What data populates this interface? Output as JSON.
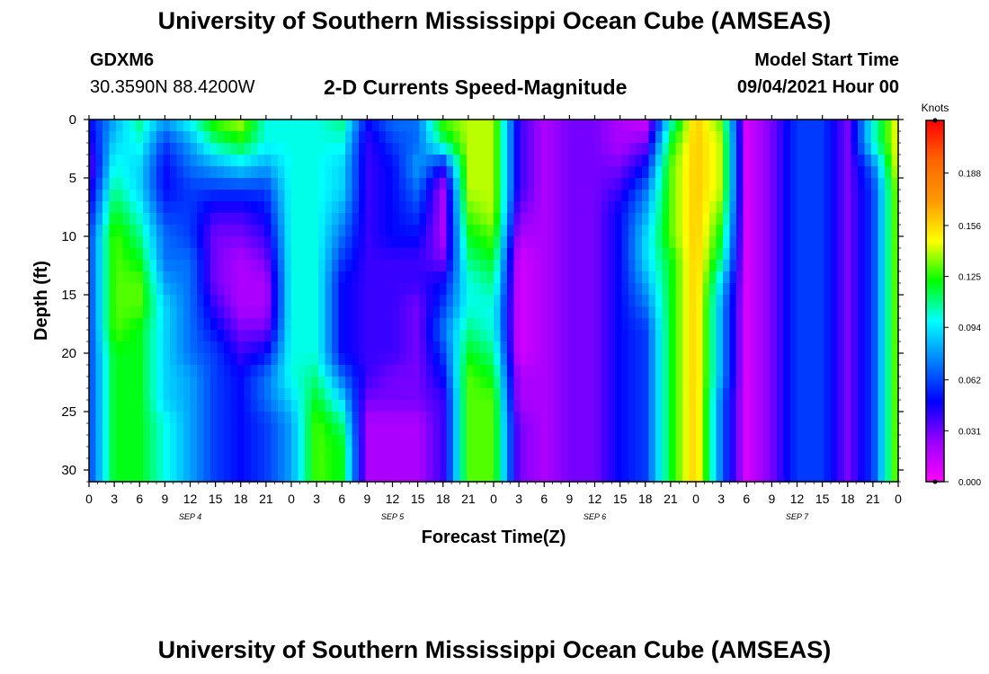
{
  "header": {
    "title": "University of Southern Mississippi Ocean Cube (AMSEAS)",
    "station": "GDXM6",
    "coords": "30.3590N  88.4200W",
    "subtitle": "2-D Currents Speed-Magnitude",
    "model_start_label": "Model Start Time",
    "model_start_value": "09/04/2021 Hour 00"
  },
  "footer": {
    "title": "University of Southern Mississippi Ocean Cube (AMSEAS)"
  },
  "chart_data": {
    "type": "heatmap",
    "title": "2-D Currents Speed-Magnitude",
    "xlabel": "Forecast Time(Z)",
    "ylabel": "Depth (ft)",
    "x_unit": "hours since 09/04/2021 00Z",
    "xlim": [
      0,
      96
    ],
    "ylim": [
      31,
      0
    ],
    "x_ticks": [
      "0",
      "3",
      "6",
      "9",
      "12",
      "15",
      "18",
      "21",
      "0",
      "3",
      "6",
      "9",
      "12",
      "15",
      "18",
      "21",
      "0",
      "3",
      "6",
      "9",
      "12",
      "15",
      "18",
      "21",
      "0",
      "3",
      "6",
      "9",
      "12",
      "15",
      "18",
      "21",
      "0"
    ],
    "day_labels": [
      "SEP 4",
      "SEP 5",
      "SEP 6",
      "SEP 7"
    ],
    "y_ticks": [
      "0",
      "5",
      "10",
      "15",
      "20",
      "25",
      "30"
    ],
    "colorbar": {
      "unit": "Knots",
      "ticks": [
        "0.000",
        "0.031",
        "0.062",
        "0.094",
        "0.125",
        "0.156",
        "0.188"
      ],
      "tick_values": [
        0.0,
        0.031,
        0.062,
        0.094,
        0.125,
        0.156,
        0.188
      ],
      "range": [
        0,
        0.22
      ],
      "colors": [
        "#ff00ff",
        "#9900ff",
        "#0000ff",
        "#0080ff",
        "#00ffff",
        "#00ff00",
        "#ffff00",
        "#ff9900",
        "#ff6600",
        "#ff0000"
      ]
    },
    "depths": [
      0,
      2,
      4,
      6,
      8,
      10,
      12,
      14,
      16,
      18,
      20,
      22,
      24,
      26,
      28,
      30,
      31
    ],
    "hours": [
      0,
      3,
      6,
      9,
      12,
      15,
      18,
      21,
      24,
      27,
      30,
      33,
      36,
      39,
      42,
      45,
      48,
      51,
      54,
      57,
      60,
      63,
      66,
      69,
      72,
      75,
      78,
      81,
      84,
      87,
      90,
      93,
      96
    ],
    "values": [
      [
        0.05,
        0.08,
        0.11,
        0.08,
        0.1,
        0.13,
        0.14,
        0.1,
        0.1,
        0.1,
        0.11,
        0.05,
        0.07,
        0.07,
        0.13,
        0.14,
        0.14,
        0.04,
        0.02,
        0.03,
        0.03,
        0.02,
        0.01,
        0.1,
        0.16,
        0.13,
        0.01,
        0.03,
        0.06,
        0.06,
        0.03,
        0.1,
        0.15
      ],
      [
        0.04,
        0.09,
        0.1,
        0.06,
        0.08,
        0.11,
        0.12,
        0.1,
        0.1,
        0.1,
        0.1,
        0.04,
        0.06,
        0.07,
        0.11,
        0.14,
        0.14,
        0.04,
        0.02,
        0.03,
        0.03,
        0.02,
        0.03,
        0.12,
        0.16,
        0.14,
        0.01,
        0.03,
        0.06,
        0.06,
        0.03,
        0.1,
        0.15
      ],
      [
        0.03,
        0.1,
        0.09,
        0.05,
        0.07,
        0.08,
        0.09,
        0.08,
        0.1,
        0.1,
        0.09,
        0.04,
        0.05,
        0.08,
        0.05,
        0.14,
        0.14,
        0.04,
        0.02,
        0.03,
        0.03,
        0.03,
        0.05,
        0.13,
        0.16,
        0.14,
        0.01,
        0.03,
        0.06,
        0.06,
        0.03,
        0.07,
        0.15
      ],
      [
        0.04,
        0.11,
        0.09,
        0.05,
        0.06,
        0.06,
        0.06,
        0.06,
        0.1,
        0.1,
        0.09,
        0.04,
        0.05,
        0.07,
        0.02,
        0.14,
        0.14,
        0.04,
        0.02,
        0.03,
        0.03,
        0.04,
        0.07,
        0.13,
        0.16,
        0.14,
        0.01,
        0.03,
        0.06,
        0.06,
        0.03,
        0.06,
        0.14
      ],
      [
        0.05,
        0.12,
        0.1,
        0.06,
        0.06,
        0.04,
        0.04,
        0.05,
        0.1,
        0.1,
        0.08,
        0.04,
        0.05,
        0.06,
        0.02,
        0.13,
        0.14,
        0.03,
        0.02,
        0.03,
        0.03,
        0.05,
        0.08,
        0.13,
        0.16,
        0.13,
        0.01,
        0.03,
        0.06,
        0.06,
        0.03,
        0.06,
        0.14
      ],
      [
        0.06,
        0.13,
        0.11,
        0.07,
        0.06,
        0.03,
        0.03,
        0.04,
        0.1,
        0.1,
        0.07,
        0.04,
        0.05,
        0.05,
        0.02,
        0.12,
        0.13,
        0.02,
        0.02,
        0.03,
        0.03,
        0.05,
        0.09,
        0.13,
        0.16,
        0.12,
        0.01,
        0.03,
        0.06,
        0.06,
        0.03,
        0.06,
        0.14
      ],
      [
        0.06,
        0.13,
        0.12,
        0.07,
        0.07,
        0.03,
        0.02,
        0.03,
        0.1,
        0.1,
        0.06,
        0.04,
        0.04,
        0.04,
        0.03,
        0.11,
        0.12,
        0.01,
        0.02,
        0.03,
        0.03,
        0.05,
        0.09,
        0.12,
        0.16,
        0.11,
        0.01,
        0.03,
        0.06,
        0.06,
        0.03,
        0.06,
        0.14
      ],
      [
        0.06,
        0.13,
        0.13,
        0.08,
        0.07,
        0.03,
        0.02,
        0.02,
        0.1,
        0.1,
        0.05,
        0.04,
        0.04,
        0.04,
        0.05,
        0.1,
        0.11,
        0.01,
        0.02,
        0.03,
        0.03,
        0.05,
        0.08,
        0.12,
        0.16,
        0.09,
        0.01,
        0.03,
        0.06,
        0.06,
        0.03,
        0.06,
        0.14
      ],
      [
        0.06,
        0.13,
        0.13,
        0.09,
        0.07,
        0.04,
        0.02,
        0.02,
        0.1,
        0.1,
        0.05,
        0.04,
        0.04,
        0.03,
        0.06,
        0.1,
        0.1,
        0.01,
        0.02,
        0.03,
        0.03,
        0.05,
        0.07,
        0.12,
        0.16,
        0.08,
        0.01,
        0.03,
        0.06,
        0.06,
        0.03,
        0.06,
        0.14
      ],
      [
        0.06,
        0.13,
        0.12,
        0.09,
        0.07,
        0.05,
        0.03,
        0.03,
        0.1,
        0.1,
        0.05,
        0.04,
        0.04,
        0.03,
        0.07,
        0.11,
        0.1,
        0.01,
        0.02,
        0.03,
        0.03,
        0.05,
        0.06,
        0.12,
        0.16,
        0.08,
        0.01,
        0.03,
        0.06,
        0.06,
        0.03,
        0.06,
        0.14
      ],
      [
        0.06,
        0.12,
        0.12,
        0.09,
        0.07,
        0.06,
        0.04,
        0.05,
        0.1,
        0.1,
        0.05,
        0.04,
        0.04,
        0.03,
        0.06,
        0.12,
        0.11,
        0.01,
        0.02,
        0.03,
        0.03,
        0.05,
        0.06,
        0.12,
        0.16,
        0.08,
        0.01,
        0.03,
        0.06,
        0.06,
        0.03,
        0.06,
        0.14
      ],
      [
        0.06,
        0.12,
        0.12,
        0.09,
        0.08,
        0.06,
        0.05,
        0.07,
        0.1,
        0.11,
        0.07,
        0.04,
        0.03,
        0.03,
        0.05,
        0.13,
        0.12,
        0.02,
        0.02,
        0.03,
        0.03,
        0.05,
        0.06,
        0.12,
        0.16,
        0.08,
        0.01,
        0.03,
        0.06,
        0.06,
        0.03,
        0.06,
        0.14
      ],
      [
        0.06,
        0.12,
        0.12,
        0.09,
        0.08,
        0.06,
        0.05,
        0.07,
        0.09,
        0.12,
        0.09,
        0.03,
        0.03,
        0.03,
        0.04,
        0.13,
        0.13,
        0.02,
        0.02,
        0.03,
        0.03,
        0.05,
        0.06,
        0.12,
        0.16,
        0.07,
        0.01,
        0.03,
        0.06,
        0.06,
        0.03,
        0.06,
        0.14
      ],
      [
        0.06,
        0.12,
        0.12,
        0.1,
        0.08,
        0.06,
        0.05,
        0.06,
        0.08,
        0.13,
        0.11,
        0.02,
        0.02,
        0.02,
        0.04,
        0.13,
        0.13,
        0.03,
        0.02,
        0.03,
        0.03,
        0.05,
        0.06,
        0.12,
        0.16,
        0.07,
        0.01,
        0.03,
        0.06,
        0.06,
        0.03,
        0.06,
        0.14
      ],
      [
        0.06,
        0.12,
        0.12,
        0.1,
        0.08,
        0.06,
        0.05,
        0.06,
        0.08,
        0.13,
        0.12,
        0.02,
        0.02,
        0.02,
        0.04,
        0.13,
        0.13,
        0.03,
        0.02,
        0.03,
        0.03,
        0.05,
        0.06,
        0.12,
        0.16,
        0.07,
        0.01,
        0.03,
        0.06,
        0.06,
        0.03,
        0.06,
        0.14
      ],
      [
        0.06,
        0.12,
        0.12,
        0.1,
        0.08,
        0.06,
        0.05,
        0.06,
        0.08,
        0.13,
        0.12,
        0.02,
        0.02,
        0.02,
        0.04,
        0.13,
        0.13,
        0.03,
        0.02,
        0.03,
        0.03,
        0.05,
        0.06,
        0.12,
        0.16,
        0.07,
        0.01,
        0.03,
        0.06,
        0.06,
        0.03,
        0.06,
        0.14
      ],
      [
        0.06,
        0.12,
        0.12,
        0.1,
        0.08,
        0.06,
        0.05,
        0.06,
        0.08,
        0.13,
        0.12,
        0.02,
        0.02,
        0.02,
        0.04,
        0.13,
        0.13,
        0.03,
        0.02,
        0.03,
        0.03,
        0.05,
        0.06,
        0.12,
        0.16,
        0.07,
        0.01,
        0.03,
        0.06,
        0.06,
        0.03,
        0.06,
        0.14
      ]
    ]
  }
}
